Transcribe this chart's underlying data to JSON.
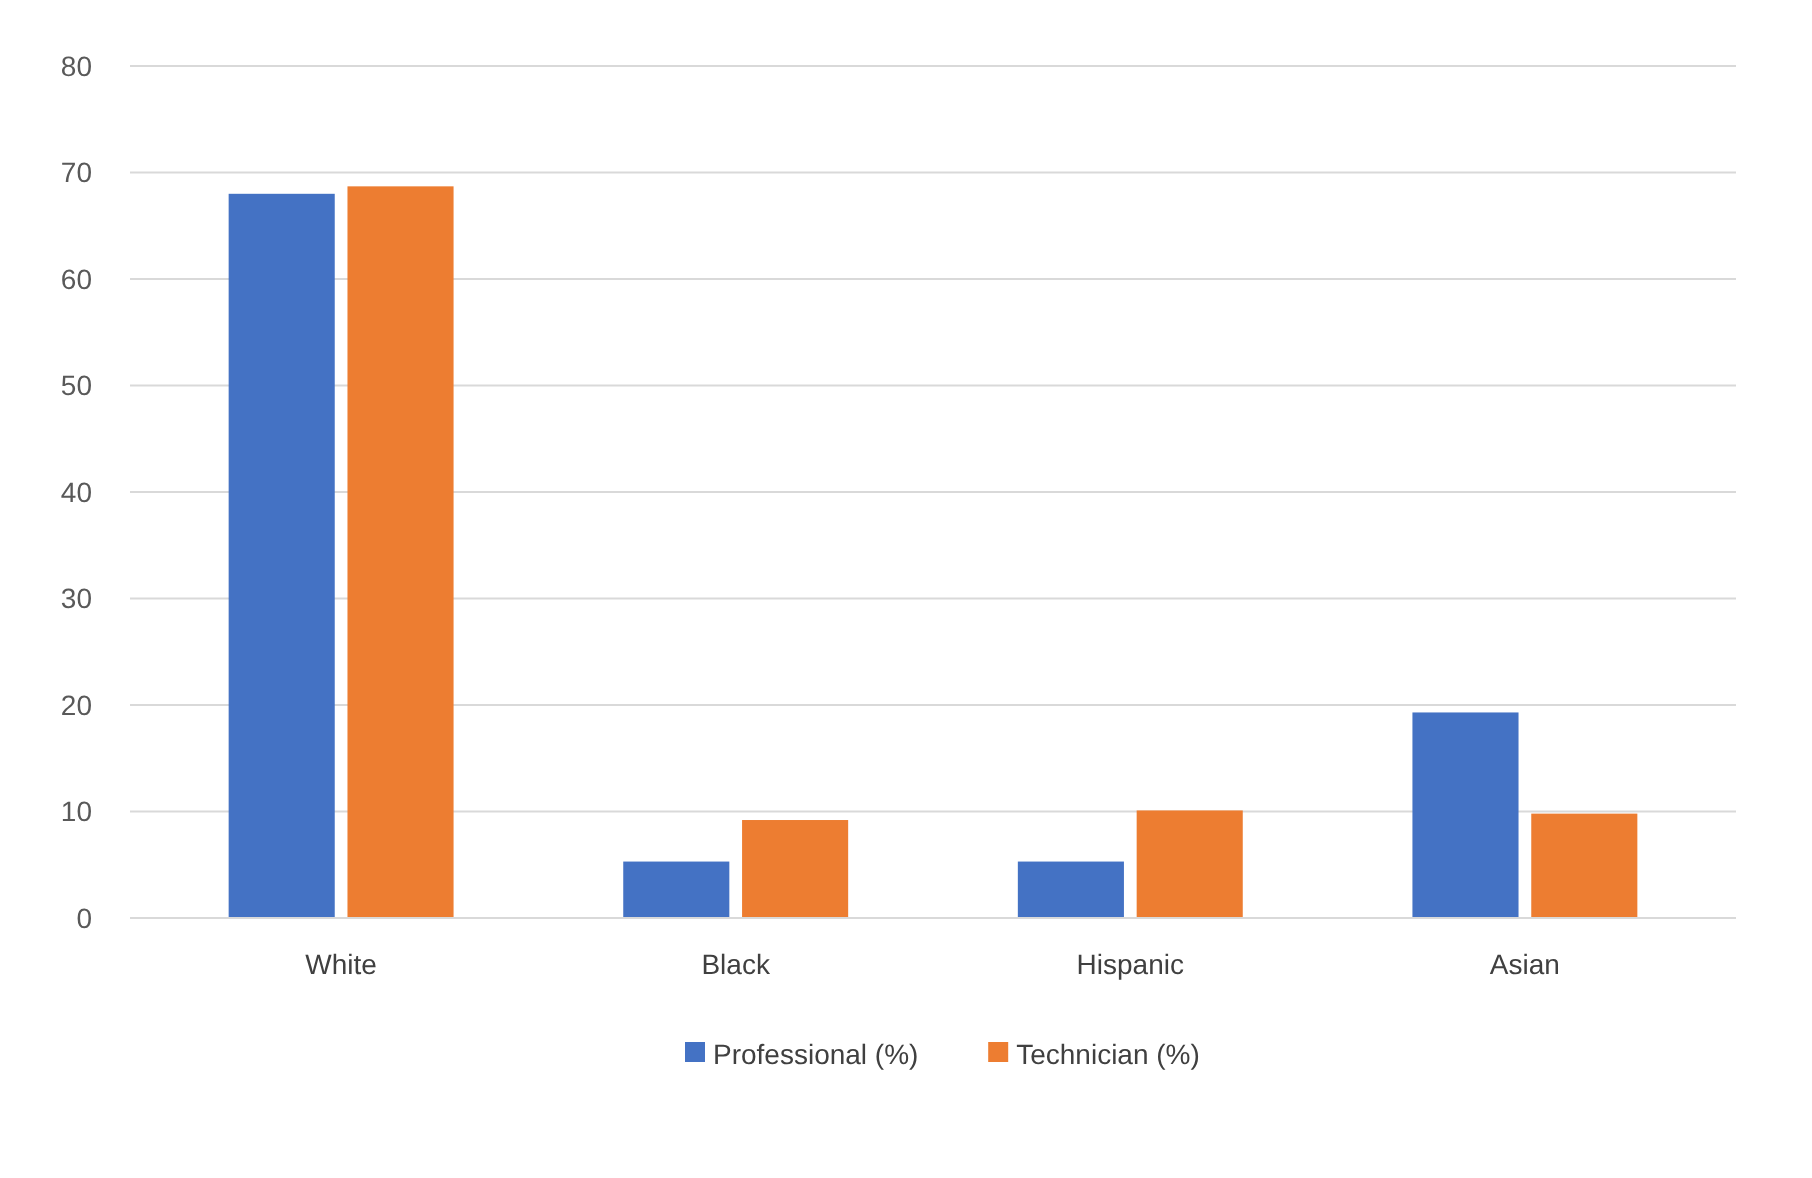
{
  "chart_data": {
    "type": "bar",
    "categories": [
      "White",
      "Black",
      "Hispanic",
      "Asian"
    ],
    "series": [
      {
        "name": "Professional (%)",
        "color": "#4472c4",
        "values": [
          68.0,
          5.3,
          5.3,
          19.3
        ]
      },
      {
        "name": "Technician (%)",
        "color": "#ed7d31",
        "values": [
          68.7,
          9.2,
          10.1,
          9.8
        ]
      }
    ],
    "ylim": [
      0,
      80
    ],
    "yticks": [
      0,
      10,
      20,
      30,
      40,
      50,
      60,
      70,
      80
    ],
    "grid": "y",
    "legend": "bottom"
  }
}
